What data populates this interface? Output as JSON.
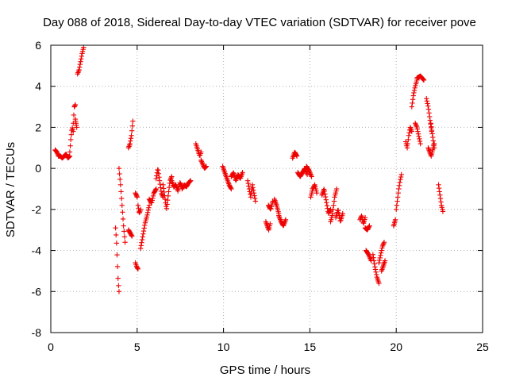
{
  "chart_data": {
    "type": "scatter",
    "title": "Day 088 of 2018, Sidereal Day-to-day VTEC variation (SDTVAR) for receiver pove",
    "xlabel": "GPS time / hours",
    "ylabel": "SDTVAR / TECUs",
    "xlim": [
      0,
      25
    ],
    "ylim": [
      -8,
      6
    ],
    "xticks": [
      0,
      5,
      10,
      15,
      20,
      25
    ],
    "yticks": [
      -8,
      -6,
      -4,
      -2,
      0,
      2,
      4,
      6
    ],
    "xtick_labels": [
      "0",
      "5",
      "10",
      "15",
      "20",
      "25"
    ],
    "ytick_labels": [
      "-8",
      "-6",
      "-4",
      "-2",
      "0",
      "2",
      "4",
      "6"
    ],
    "grid": true,
    "marker": "+",
    "color": "#ee0000",
    "series": [
      {
        "name": "SDTVAR",
        "segments": [
          {
            "x0": 0.25,
            "x1": 0.45,
            "y": [
              0.9,
              0.8,
              0.6
            ]
          },
          {
            "x0": 0.45,
            "x1": 1.1,
            "y": [
              0.6,
              0.6,
              0.5,
              0.6,
              0.7,
              0.5,
              0.6
            ]
          },
          {
            "x0": 1.1,
            "x1": 1.3,
            "y": [
              0.8,
              1.5,
              2.0,
              1.8
            ]
          },
          {
            "x0": 1.3,
            "x1": 1.42,
            "y": [
              2.2,
              3.0,
              3.1
            ]
          },
          {
            "x0": 1.42,
            "x1": 1.5,
            "y": [
              2.4,
              2.0
            ]
          },
          {
            "x0": 1.55,
            "x1": 1.9,
            "y": [
              4.6,
              4.8,
              5.2,
              5.6,
              5.9
            ]
          },
          {
            "x0": 3.75,
            "x1": 3.95,
            "y": [
              -2.9,
              -3.5,
              -4.5,
              -5.5,
              -6.0
            ]
          },
          {
            "x0": 3.95,
            "x1": 4.3,
            "y": [
              0.0,
              -0.8,
              -1.8,
              -2.8,
              -3.6
            ]
          },
          {
            "x0": 4.5,
            "x1": 4.75,
            "y": [
              1.0,
              1.2,
              1.6,
              2.3
            ]
          },
          {
            "x0": 4.5,
            "x1": 4.7,
            "y": [
              -3.0,
              -3.3
            ]
          },
          {
            "x0": 4.9,
            "x1": 5.05,
            "y": [
              -4.6,
              -4.8,
              -4.9
            ]
          },
          {
            "x0": 4.9,
            "x1": 5.0,
            "y": [
              -1.2,
              -1.4
            ]
          },
          {
            "x0": 5.05,
            "x1": 5.2,
            "y": [
              -1.8,
              -2.2,
              -2.0
            ]
          },
          {
            "x0": 5.2,
            "x1": 5.7,
            "y": [
              -3.9,
              -3.3,
              -2.7,
              -2.3,
              -1.8
            ]
          },
          {
            "x0": 5.7,
            "x1": 6.1,
            "y": [
              -1.5,
              -1.7,
              -1.2,
              -1.0
            ]
          },
          {
            "x0": 6.1,
            "x1": 6.5,
            "y": [
              -0.5,
              0.0,
              -0.6,
              -1.2,
              -1.4
            ]
          },
          {
            "x0": 6.5,
            "x1": 7.0,
            "y": [
              -0.8,
              -1.4,
              -2.0,
              -1.3,
              -0.6,
              -0.4
            ]
          },
          {
            "x0": 7.0,
            "x1": 7.6,
            "y": [
              -0.6,
              -0.9,
              -0.8,
              -1.1,
              -0.7,
              -0.9
            ]
          },
          {
            "x0": 7.6,
            "x1": 8.1,
            "y": [
              -1.0,
              -0.8,
              -0.9,
              -0.7,
              -0.6
            ]
          },
          {
            "x0": 8.4,
            "x1": 8.7,
            "y": [
              1.2,
              1.0,
              0.8,
              0.6,
              0.8
            ]
          },
          {
            "x0": 8.7,
            "x1": 9.0,
            "y": [
              0.4,
              0.2,
              0.0,
              0.1
            ]
          },
          {
            "x0": 9.95,
            "x1": 10.45,
            "y": [
              0.1,
              -0.2,
              -0.5,
              -0.8,
              -1.0
            ]
          },
          {
            "x0": 10.45,
            "x1": 11.1,
            "y": [
              -0.4,
              -0.2,
              -0.6,
              -0.3,
              -0.5,
              -0.2
            ]
          },
          {
            "x0": 11.4,
            "x1": 11.85,
            "y": [
              -0.6,
              -1.0,
              -1.4,
              -0.8,
              -1.2,
              -1.6
            ]
          },
          {
            "x0": 12.45,
            "x1": 12.7,
            "y": [
              -2.6,
              -2.8,
              -3.0,
              -2.7
            ]
          },
          {
            "x0": 12.6,
            "x1": 12.85,
            "y": [
              -1.8,
              -2.0,
              -1.6
            ]
          },
          {
            "x0": 12.95,
            "x1": 13.2,
            "y": [
              -1.5,
              -1.8,
              -2.2
            ]
          },
          {
            "x0": 13.2,
            "x1": 13.6,
            "y": [
              -2.3,
              -2.6,
              -2.8,
              -2.5
            ]
          },
          {
            "x0": 14.0,
            "x1": 14.25,
            "y": [
              0.5,
              0.8,
              0.6
            ]
          },
          {
            "x0": 14.3,
            "x1": 14.85,
            "y": [
              -0.2,
              -0.4,
              -0.2,
              0.0,
              -0.3
            ]
          },
          {
            "x0": 14.8,
            "x1": 15.1,
            "y": [
              0.1,
              -0.1,
              -0.4
            ]
          },
          {
            "x0": 15.05,
            "x1": 15.4,
            "y": [
              -1.4,
              -1.0,
              -0.8,
              -1.2
            ]
          },
          {
            "x0": 15.7,
            "x1": 16.2,
            "y": [
              -1.3,
              -1.0,
              -1.6,
              -2.2,
              -2.0
            ]
          },
          {
            "x0": 16.2,
            "x1": 16.55,
            "y": [
              -2.6,
              -2.2,
              -1.4,
              -1.0
            ]
          },
          {
            "x0": 16.5,
            "x1": 16.9,
            "y": [
              -2.4,
              -2.0,
              -2.6,
              -2.2
            ]
          },
          {
            "x0": 17.9,
            "x1": 18.2,
            "y": [
              -2.5,
              -2.3,
              -2.7,
              -2.4
            ]
          },
          {
            "x0": 18.2,
            "x1": 18.45,
            "y": [
              -2.9,
              -3.0,
              -2.8
            ]
          },
          {
            "x0": 18.25,
            "x1": 18.55,
            "y": [
              -4.0,
              -4.2,
              -4.5
            ]
          },
          {
            "x0": 18.65,
            "x1": 19.0,
            "y": [
              -4.2,
              -4.8,
              -5.3,
              -5.6
            ]
          },
          {
            "x0": 19.0,
            "x1": 19.3,
            "y": [
              -4.6,
              -4.2,
              -3.8,
              -3.6
            ]
          },
          {
            "x0": 19.15,
            "x1": 19.35,
            "y": [
              -5.0,
              -4.5
            ]
          },
          {
            "x0": 19.85,
            "x1": 19.95,
            "y": [
              -2.8,
              -2.5
            ]
          },
          {
            "x0": 20.0,
            "x1": 20.3,
            "y": [
              -2.0,
              -1.5,
              -1.0,
              -0.6,
              -0.3
            ]
          },
          {
            "x0": 20.55,
            "x1": 20.9,
            "y": [
              1.3,
              1.0,
              1.6,
              2.0,
              1.8
            ]
          },
          {
            "x0": 20.9,
            "x1": 21.2,
            "y": [
              3.0,
              3.6,
              4.0,
              4.3
            ]
          },
          {
            "x0": 21.1,
            "x1": 21.4,
            "y": [
              2.2,
              2.0,
              1.6,
              1.2
            ]
          },
          {
            "x0": 21.2,
            "x1": 21.6,
            "y": [
              4.4,
              4.5,
              4.3
            ]
          },
          {
            "x0": 21.75,
            "x1": 22.05,
            "y": [
              3.4,
              3.0,
              2.4,
              1.8
            ]
          },
          {
            "x0": 21.85,
            "x1": 22.2,
            "y": [
              1.0,
              0.6,
              1.2
            ]
          },
          {
            "x0": 22.0,
            "x1": 22.2,
            "y": [
              2.2,
              1.6,
              1.0
            ]
          },
          {
            "x0": 22.45,
            "x1": 22.7,
            "y": [
              -0.8,
              -1.3,
              -1.8,
              -2.1
            ]
          }
        ]
      }
    ]
  }
}
